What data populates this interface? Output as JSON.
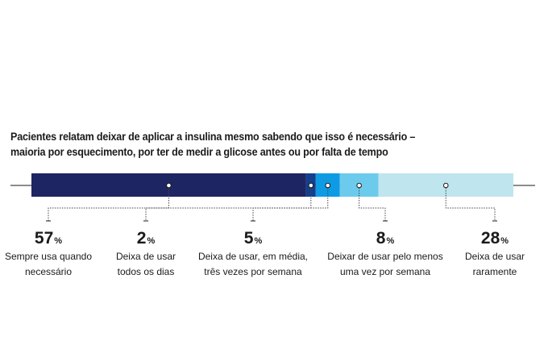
{
  "title_lines": [
    "Pacientes relatam deixar de aplicar a insulina mesmo sabendo que isso é necessário –",
    "maioria por esquecimento, por ter de medir a glicose antes ou por falta de tempo"
  ],
  "chart_data": {
    "type": "bar",
    "orientation": "horizontal-stacked-100",
    "unit_symbol": "%",
    "segments": [
      {
        "value": 57,
        "label": [
          "Sempre usa quando",
          "necessário"
        ],
        "color": "#1d2562"
      },
      {
        "value": 2,
        "label": [
          "Deixa de usar",
          "todos os dias"
        ],
        "color": "#123f8f"
      },
      {
        "value": 5,
        "label": [
          "Deixa de usar, em média,",
          "três vezes por semana"
        ],
        "color": "#0e9be4"
      },
      {
        "value": 8,
        "label": [
          "Deixar de usar pelo menos",
          "uma vez por semana"
        ],
        "color": "#6ccbec"
      },
      {
        "value": 28,
        "label": [
          "Deixa de usar",
          "raramente"
        ],
        "color": "#bfe5ee"
      }
    ]
  }
}
